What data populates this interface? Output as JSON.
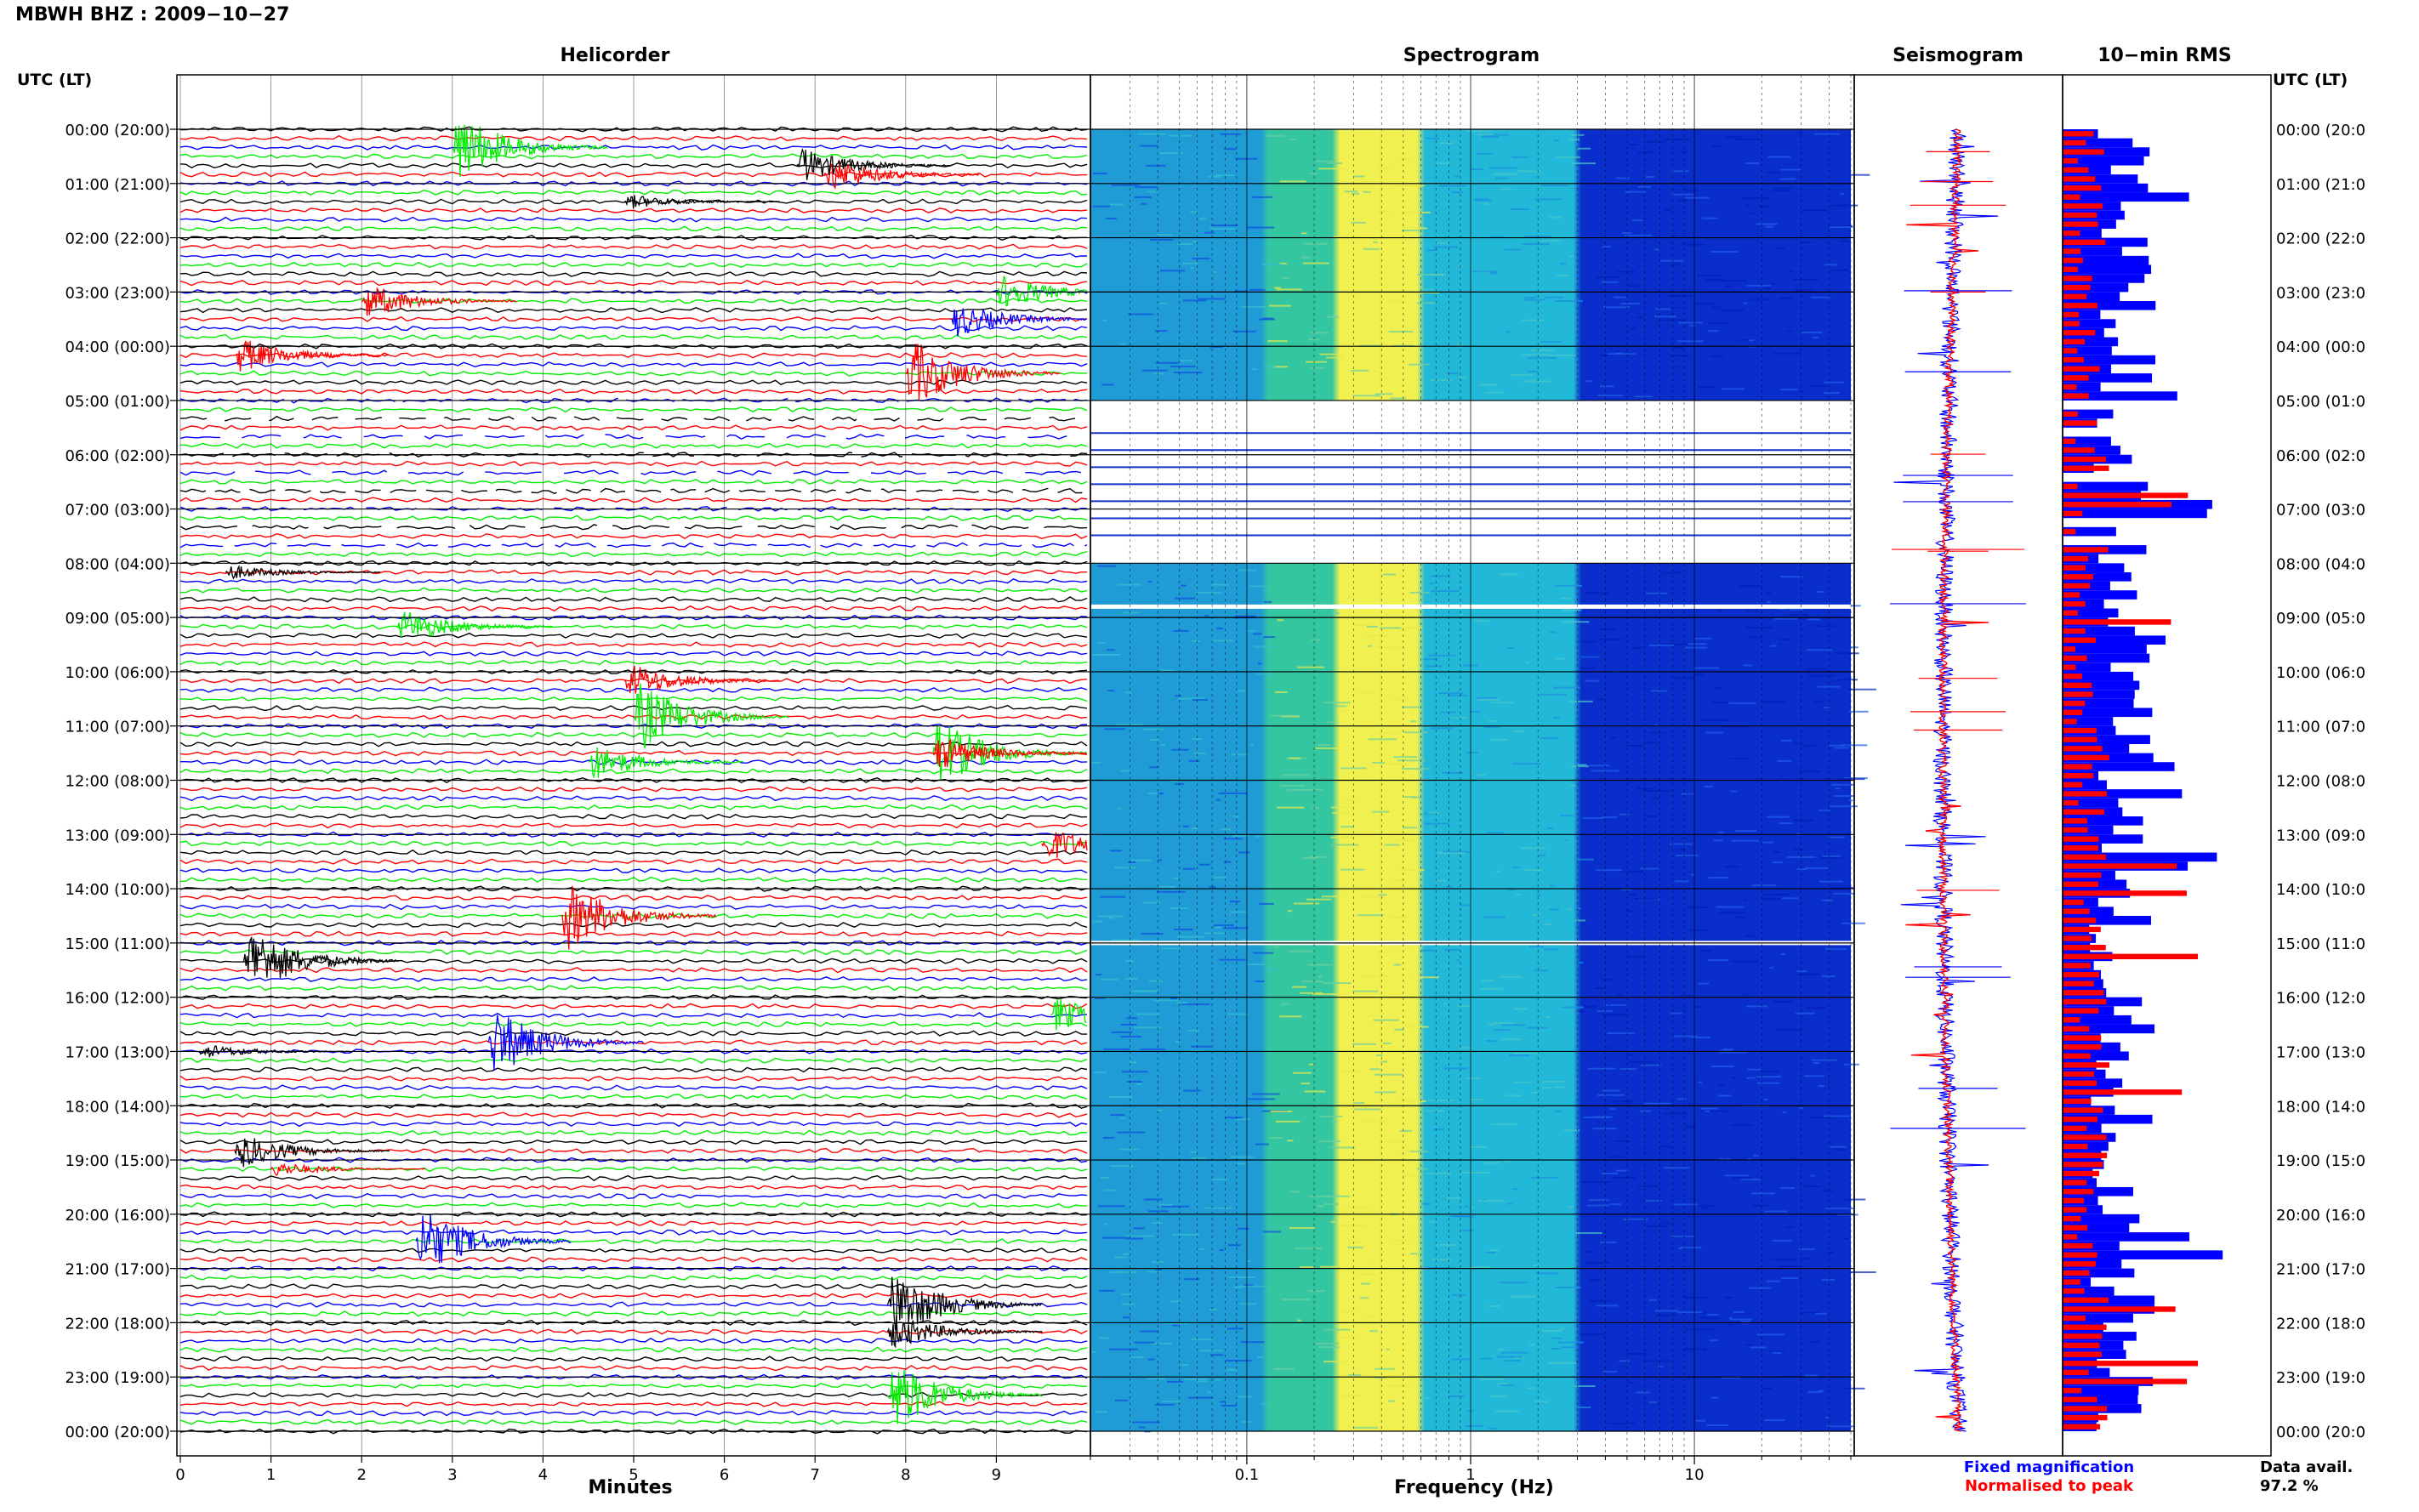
{
  "station_title": "MBWH BHZ : 2009−10−27",
  "utc_header_left": "UTC (LT)",
  "utc_header_right": "UTC (LT)",
  "panels": {
    "helicorder": "Helicorder",
    "spectrogram": "Spectrogram",
    "seismogram": "Seismogram",
    "rms": "10−min RMS"
  },
  "hour_labels": [
    "00:00 (20:00)",
    "01:00 (21:00)",
    "02:00 (22:00)",
    "03:00 (23:00)",
    "04:00 (00:00)",
    "05:00 (01:00)",
    "06:00 (02:00)",
    "07:00 (03:00)",
    "08:00 (04:00)",
    "09:00 (05:00)",
    "10:00 (06:00)",
    "11:00 (07:00)",
    "12:00 (08:00)",
    "13:00 (09:00)",
    "14:00 (10:00)",
    "15:00 (11:00)",
    "16:00 (12:00)",
    "17:00 (13:00)",
    "18:00 (14:00)",
    "19:00 (15:00)",
    "20:00 (16:00)",
    "21:00 (17:00)",
    "22:00 (18:00)",
    "23:00 (19:00)",
    "00:00 (20:00)"
  ],
  "hour_labels_right": [
    "00:00 (20:0",
    "01:00 (21:0",
    "02:00 (22:0",
    "03:00 (23:0",
    "04:00 (00:0",
    "05:00 (01:0",
    "06:00 (02:0",
    "07:00 (03:0",
    "08:00 (04:0",
    "09:00 (05:0",
    "10:00 (06:0",
    "11:00 (07:0",
    "12:00 (08:0",
    "13:00 (09:0",
    "14:00 (10:0",
    "15:00 (11:0",
    "16:00 (12:0",
    "17:00 (13:0",
    "18:00 (14:0",
    "19:00 (15:0",
    "20:00 (16:0",
    "21:00 (17:0",
    "22:00 (18:0",
    "23:00 (19:0",
    "00:00 (20:0"
  ],
  "x_axis_helicorder": {
    "label": "Minutes",
    "ticks": [
      "0",
      "1",
      "2",
      "3",
      "4",
      "5",
      "6",
      "7",
      "8",
      "9"
    ]
  },
  "x_axis_spectrogram": {
    "label": "Frequency (Hz)",
    "ticks": [
      "0.1",
      "1",
      "10"
    ]
  },
  "legend": {
    "fixed": "Fixed magnification",
    "normalised": "Normalised to peak"
  },
  "data_avail": {
    "label": "Data avail.",
    "value": "97.2 %"
  },
  "colors": {
    "black": "#000000",
    "red": "#ff0000",
    "blue": "#0000ff",
    "green": "#00ee00",
    "spec_dark": "#0a2ecb",
    "spec_yellow": "#f0f050"
  },
  "chart_data": [
    {
      "type": "line",
      "panel": "helicorder",
      "title": "Helicorder",
      "xlabel": "Minutes",
      "xlim": [
        0,
        10
      ],
      "trace_colors_cycle": [
        "black",
        "red",
        "blue",
        "green"
      ],
      "traces_per_hour": 6,
      "events": [
        {
          "hour": 0,
          "minute": 3.0,
          "color": "green",
          "amplitude": "large"
        },
        {
          "hour": 0,
          "minute": 7.1,
          "color": "red",
          "amplitude": "medium"
        },
        {
          "hour": 0,
          "minute": 6.8,
          "color": "black",
          "amplitude": "medium"
        },
        {
          "hour": 1,
          "minute": 4.9,
          "color": "black",
          "amplitude": "small"
        },
        {
          "hour": 3,
          "minute": 2.0,
          "color": "red",
          "amplitude": "medium"
        },
        {
          "hour": 3,
          "minute": 8.5,
          "color": "blue",
          "amplitude": "medium"
        },
        {
          "hour": 3,
          "minute": 9.0,
          "color": "green",
          "amplitude": "medium"
        },
        {
          "hour": 4,
          "minute": 0.6,
          "color": "red",
          "amplitude": "medium"
        },
        {
          "hour": 4,
          "minute": 8.0,
          "color": "red",
          "amplitude": "large"
        },
        {
          "hour": 8,
          "minute": 0.5,
          "color": "black",
          "amplitude": "small"
        },
        {
          "hour": 9,
          "minute": 2.4,
          "color": "green",
          "amplitude": "medium"
        },
        {
          "hour": 10,
          "minute": 4.9,
          "color": "red",
          "amplitude": "medium"
        },
        {
          "hour": 10,
          "minute": 5.0,
          "color": "green",
          "amplitude": "large"
        },
        {
          "hour": 11,
          "minute": 4.5,
          "color": "green",
          "amplitude": "medium"
        },
        {
          "hour": 11,
          "minute": 8.3,
          "color": "green",
          "amplitude": "large"
        },
        {
          "hour": 11,
          "minute": 8.3,
          "color": "red",
          "amplitude": "medium"
        },
        {
          "hour": 13,
          "minute": 9.5,
          "color": "red",
          "amplitude": "medium"
        },
        {
          "hour": 14,
          "minute": 4.2,
          "color": "red",
          "amplitude": "large"
        },
        {
          "hour": 15,
          "minute": 0.7,
          "color": "black",
          "amplitude": "large"
        },
        {
          "hour": 16,
          "minute": 3.4,
          "color": "blue",
          "amplitude": "large"
        },
        {
          "hour": 16,
          "minute": 9.6,
          "color": "green",
          "amplitude": "medium"
        },
        {
          "hour": 17,
          "minute": 0.2,
          "color": "black",
          "amplitude": "small"
        },
        {
          "hour": 18,
          "minute": 0.6,
          "color": "black",
          "amplitude": "medium"
        },
        {
          "hour": 19,
          "minute": 1.0,
          "color": "red",
          "amplitude": "small"
        },
        {
          "hour": 20,
          "minute": 2.6,
          "color": "blue",
          "amplitude": "large"
        },
        {
          "hour": 21,
          "minute": 7.8,
          "color": "black",
          "amplitude": "large"
        },
        {
          "hour": 22,
          "minute": 7.8,
          "color": "black",
          "amplitude": "medium"
        },
        {
          "hour": 23,
          "minute": 7.8,
          "color": "green",
          "amplitude": "large"
        }
      ],
      "data_gaps_hours": [
        5,
        6,
        7
      ]
    },
    {
      "type": "heatmap",
      "panel": "spectrogram",
      "title": "Spectrogram",
      "xlabel": "Frequency (Hz)",
      "x_scale": "log",
      "xlim": [
        0.02,
        50
      ],
      "ylim_hours": [
        0,
        24
      ],
      "bands": [
        {
          "fmin": 0.02,
          "fmax": 0.12,
          "color": "cyan-blue"
        },
        {
          "fmin": 0.12,
          "fmax": 0.25,
          "color": "green-cyan"
        },
        {
          "fmin": 0.25,
          "fmax": 0.6,
          "color": "yellow"
        },
        {
          "fmin": 0.6,
          "fmax": 3.0,
          "color": "cyan"
        },
        {
          "fmin": 3.0,
          "fmax": 50,
          "color": "dark-blue"
        }
      ],
      "gap_hours": [
        5.0,
        8.0
      ]
    },
    {
      "type": "line",
      "panel": "seismogram",
      "title": "Seismogram",
      "series": [
        {
          "name": "Fixed magnification",
          "color": "blue"
        },
        {
          "name": "Normalised to peak",
          "color": "red"
        }
      ]
    },
    {
      "type": "bar",
      "panel": "rms",
      "title": "10−min RMS",
      "orientation": "horizontal",
      "categories_hours": [
        0,
        24
      ],
      "bins_per_hour": 6,
      "series": [
        {
          "name": "Fixed magnification",
          "color": "blue"
        },
        {
          "name": "Normalised to peak",
          "color": "red"
        }
      ]
    }
  ]
}
